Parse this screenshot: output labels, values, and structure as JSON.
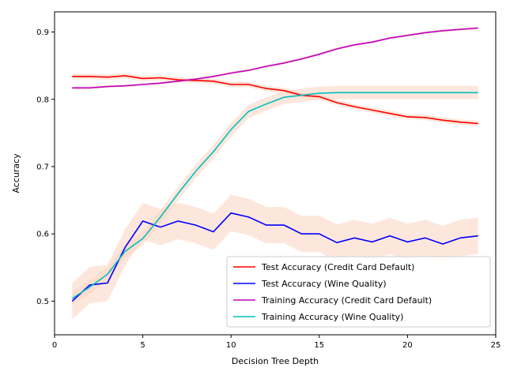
{
  "chart_data": {
    "type": "line",
    "xlabel": "Decision Tree Depth",
    "ylabel": "Accuracy",
    "xlim": [
      0,
      25
    ],
    "ylim": [
      0.45,
      0.93
    ],
    "xticks": [
      0,
      5,
      10,
      15,
      20,
      25
    ],
    "yticks": [
      0.5,
      0.6,
      0.7,
      0.8,
      0.9
    ],
    "grid": false,
    "legend_position": "lower-right",
    "x": [
      1,
      2,
      3,
      4,
      5,
      6,
      7,
      8,
      9,
      10,
      11,
      12,
      13,
      14,
      15,
      16,
      17,
      18,
      19,
      20,
      21,
      22,
      23,
      24
    ],
    "series": [
      {
        "name": "Test Accuracy (Credit Card Default)",
        "color": "#ff0000",
        "values": [
          0.834,
          0.834,
          0.833,
          0.835,
          0.831,
          0.832,
          0.829,
          0.828,
          0.827,
          0.822,
          0.822,
          0.816,
          0.813,
          0.806,
          0.804,
          0.795,
          0.789,
          0.784,
          0.779,
          0.774,
          0.773,
          0.769,
          0.766,
          0.764
        ],
        "band": 0.004
      },
      {
        "name": "Test Accuracy (Wine Quality)",
        "color": "#0000ff",
        "values": [
          0.5,
          0.524,
          0.527,
          0.58,
          0.619,
          0.61,
          0.619,
          0.613,
          0.603,
          0.631,
          0.625,
          0.613,
          0.613,
          0.6,
          0.6,
          0.587,
          0.594,
          0.588,
          0.597,
          0.588,
          0.594,
          0.585,
          0.594,
          0.597
        ],
        "band": 0.027
      },
      {
        "name": "Training Accuracy (Credit Card Default)",
        "color": "#bf00bf",
        "values": [
          0.817,
          0.817,
          0.819,
          0.82,
          0.822,
          0.824,
          0.827,
          0.83,
          0.834,
          0.839,
          0.843,
          0.849,
          0.854,
          0.86,
          0.867,
          0.875,
          0.881,
          0.885,
          0.891,
          0.895,
          0.899,
          0.902,
          0.904,
          0.906
        ],
        "band": 0.002
      },
      {
        "name": "Training Accuracy (Wine Quality)",
        "color": "#00bfbf",
        "values": [
          0.504,
          0.521,
          0.54,
          0.574,
          0.593,
          0.625,
          0.66,
          0.693,
          0.722,
          0.755,
          0.782,
          0.793,
          0.803,
          0.806,
          0.809,
          0.81,
          0.81,
          0.81,
          0.81,
          0.81,
          0.81,
          0.81,
          0.81,
          0.81
        ],
        "band": 0.01
      }
    ],
    "band_color": "#fbd3c0"
  }
}
